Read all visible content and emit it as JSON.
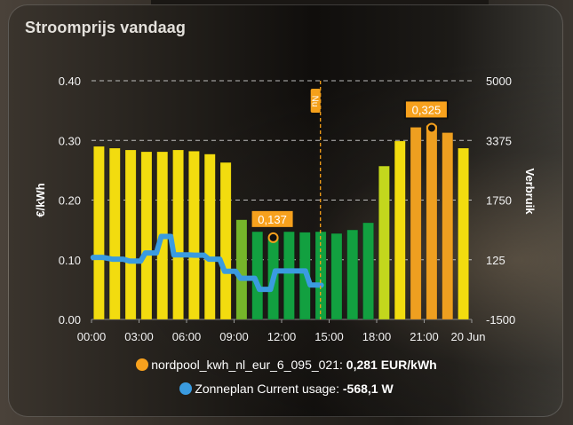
{
  "card": {
    "title": "Stroomprijs vandaag"
  },
  "legend": [
    {
      "name": "nordpool_kwh_nl_eur_6_095_021",
      "separator": ": ",
      "value": "0,281 EUR/kWh",
      "color": "#f7a11d"
    },
    {
      "name": "Zonneplan Current usage",
      "separator": ": ",
      "value": "-568,1 W",
      "color": "#3a9be0"
    }
  ],
  "now_marker": {
    "label": "Nu",
    "color": "#f5a01a"
  },
  "annotations": {
    "min_label": "0,137",
    "max_label": "0,325"
  },
  "chart_data": {
    "type": "bar",
    "title": "Stroomprijs vandaag",
    "xlabel": "",
    "x_tick_labels": [
      "00:00",
      "03:00",
      "06:00",
      "09:00",
      "12:00",
      "15:00",
      "18:00",
      "21:00",
      "20 Jun"
    ],
    "categories": [
      "00:00",
      "01:00",
      "02:00",
      "03:00",
      "04:00",
      "05:00",
      "06:00",
      "07:00",
      "08:00",
      "09:00",
      "10:00",
      "11:00",
      "12:00",
      "13:00",
      "14:00",
      "15:00",
      "16:00",
      "17:00",
      "18:00",
      "19:00",
      "20:00",
      "21:00",
      "22:00",
      "23:00"
    ],
    "y_left": {
      "label": "€/kWh",
      "ticks": [
        "0.00",
        "0.10",
        "0.20",
        "0.30",
        "0.40"
      ],
      "range": [
        0,
        0.4
      ]
    },
    "y_right": {
      "label": "Verbruik",
      "ticks": [
        "-1500",
        "125",
        "1750",
        "3375",
        "5000"
      ],
      "range": [
        -1500,
        5000
      ]
    },
    "grid": true,
    "series": [
      {
        "name": "nordpool_kwh_nl_eur_6_095_021",
        "type": "bar",
        "axis": "left",
        "unit": "EUR/kWh",
        "values": [
          0.29,
          0.287,
          0.284,
          0.281,
          0.281,
          0.284,
          0.282,
          0.277,
          0.263,
          0.167,
          0.147,
          0.137,
          0.147,
          0.146,
          0.147,
          0.144,
          0.15,
          0.162,
          0.257,
          0.299,
          0.322,
          0.325,
          0.313,
          0.287
        ],
        "colors": [
          "#f2dc0f",
          "#f2dc0f",
          "#f2dc0f",
          "#f2dc0f",
          "#f2dc0f",
          "#f2dc0f",
          "#f2dc0f",
          "#f2dc0f",
          "#f2dc0f",
          "#76b52a",
          "#12a040",
          "#12a040",
          "#12a040",
          "#12a040",
          "#12a040",
          "#12a040",
          "#12a040",
          "#12a040",
          "#c3d71d",
          "#f2dc0f",
          "#ee9f20",
          "#ee9f20",
          "#ee9f20",
          "#f2dc0f"
        ]
      },
      {
        "name": "Zonneplan Current usage",
        "type": "line",
        "axis": "right",
        "unit": "W",
        "color": "#3a9be0",
        "points": [
          [
            0.0,
            190
          ],
          [
            0.6,
            190
          ],
          [
            1.2,
            140
          ],
          [
            1.9,
            140
          ],
          [
            2.3,
            90
          ],
          [
            3.0,
            90
          ],
          [
            3.3,
            310
          ],
          [
            4.0,
            310
          ],
          [
            4.3,
            760
          ],
          [
            4.9,
            760
          ],
          [
            5.1,
            260
          ],
          [
            6.0,
            260
          ],
          [
            6.4,
            250
          ],
          [
            7.0,
            250
          ],
          [
            7.3,
            140
          ],
          [
            8.0,
            140
          ],
          [
            8.3,
            -190
          ],
          [
            9.0,
            -190
          ],
          [
            9.3,
            -380
          ],
          [
            10.2,
            -380
          ],
          [
            10.5,
            -680
          ],
          [
            11.2,
            -680
          ],
          [
            11.5,
            -180
          ],
          [
            12.1,
            -180
          ],
          [
            13.0,
            -180
          ],
          [
            13.4,
            -180
          ],
          [
            13.7,
            -560
          ],
          [
            14.4,
            -568
          ]
        ]
      }
    ],
    "annotations": [
      {
        "label": "0,137",
        "x": "11:00",
        "value": 0.137
      },
      {
        "label": "0,325",
        "x": "21:00",
        "value": 0.325
      },
      {
        "label": "Nu",
        "x_hour": 14.45
      }
    ]
  }
}
